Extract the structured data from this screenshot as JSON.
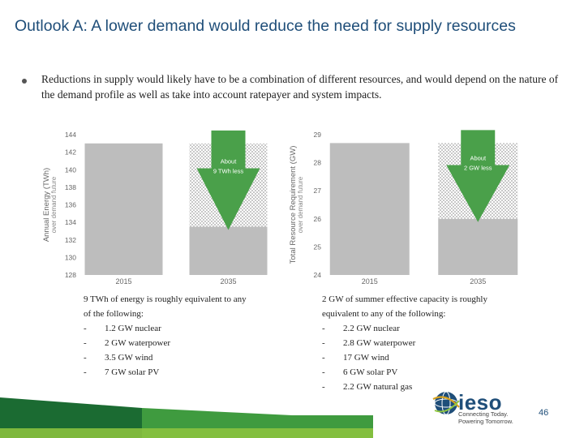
{
  "slide": {
    "title": "Outlook A: A lower demand would reduce the need for supply resources",
    "bullet": "Reductions in supply would likely have to be a combination of different resources, and would depend on the nature of the demand profile as well as take into account ratepayer and system impacts.",
    "page_number": "46"
  },
  "chart_data": [
    {
      "type": "bar",
      "categories": [
        "2015",
        "2035"
      ],
      "values": [
        143.0,
        133.5
      ],
      "reduction": 9,
      "ylabel": "Annual Energy (TWh) over demand future",
      "ylim": [
        128,
        144
      ],
      "yticks": [
        144,
        142,
        140,
        138,
        136,
        134,
        132,
        130,
        128
      ],
      "annotation": "About 9 TWh less",
      "colors": {
        "bar": "#bdbdbd",
        "hatch": "#d9d9d9",
        "arrow": "#4aa04a"
      }
    },
    {
      "type": "bar",
      "categories": [
        "2015",
        "2035"
      ],
      "values": [
        28.7,
        26.0
      ],
      "reduction": 2,
      "ylabel": "Total Resource Requirement (GW) over demand future",
      "ylim": [
        24,
        29
      ],
      "yticks": [
        29,
        28,
        27,
        26,
        25,
        24
      ],
      "annotation": "About 2 GW less",
      "colors": {
        "bar": "#bdbdbd",
        "hatch": "#d9d9d9",
        "arrow": "#4aa04a"
      }
    }
  ],
  "notes_left": {
    "intro_1": "9 TWh of energy is roughly equivalent to any",
    "intro_2": "of the following:",
    "items": [
      "1.2 GW nuclear",
      "2 GW waterpower",
      "3.5 GW wind",
      "7 GW solar PV"
    ]
  },
  "notes_right": {
    "intro_1": "2 GW of summer effective capacity is roughly",
    "intro_2": "equivalent to any of the following:",
    "items": [
      "2.2 GW nuclear",
      "2.8 GW waterpower",
      "17 GW wind",
      "6 GW solar PV",
      "2.2 GW natural gas"
    ]
  },
  "logo": {
    "name": "ieso",
    "tagline_1": "Connecting Today.",
    "tagline_2": "Powering Tomorrow.",
    "icon": "globe-icon"
  },
  "footer": {
    "band_colors": [
      "#1b6b32",
      "#3f9b3f",
      "#8fc63f"
    ]
  }
}
